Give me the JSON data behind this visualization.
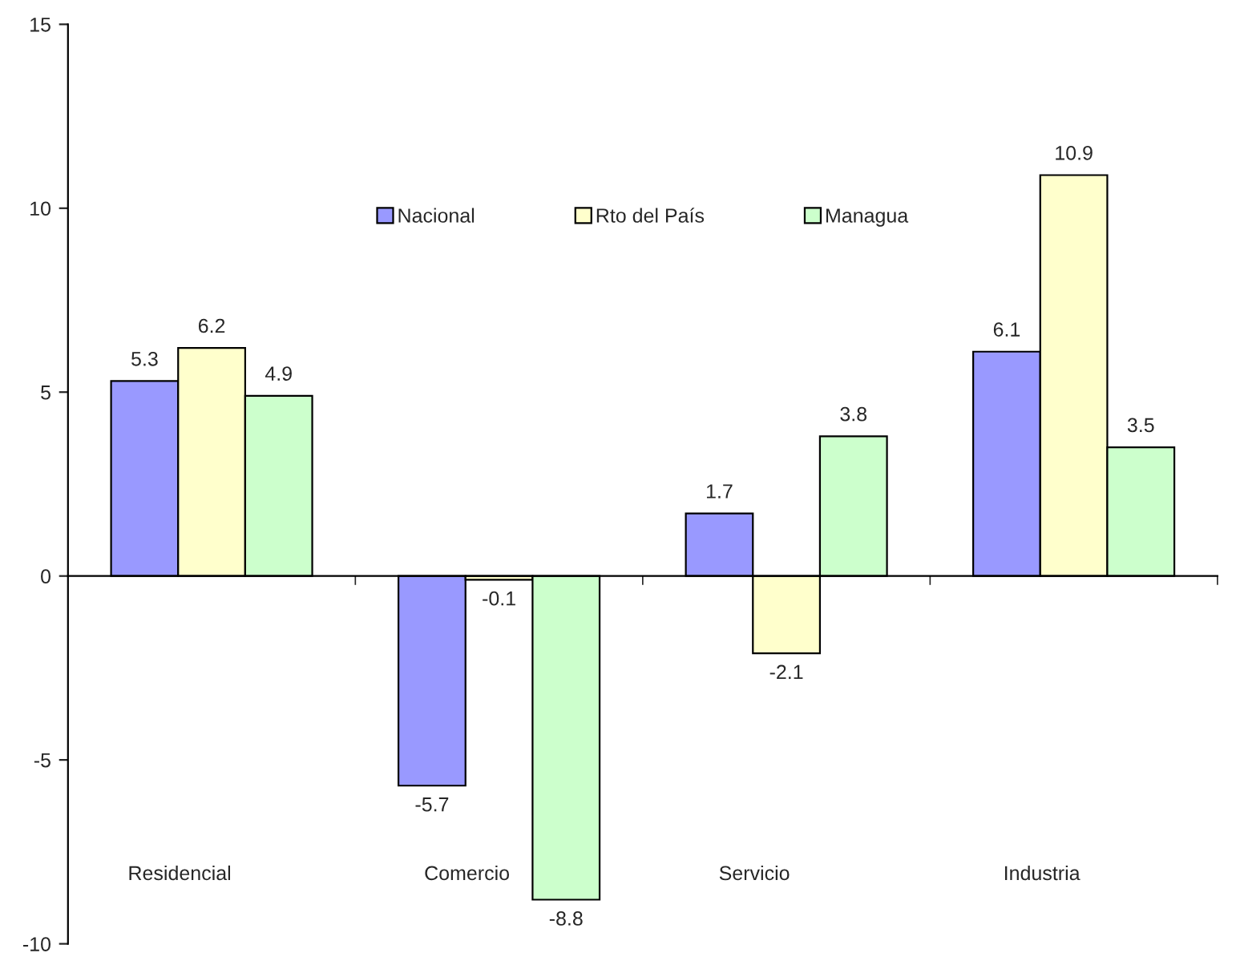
{
  "chart_data": {
    "type": "bar",
    "categories": [
      "Residencial",
      "Comercio",
      "Servicio",
      "Industria"
    ],
    "series": [
      {
        "name": "Nacional",
        "color": "#9999ff",
        "values": [
          5.3,
          -5.7,
          1.7,
          6.1
        ]
      },
      {
        "name": "Rto del País",
        "color": "#ffffcc",
        "values": [
          6.2,
          -0.1,
          -2.1,
          10.9
        ]
      },
      {
        "name": "Managua",
        "color": "#ccffcc",
        "values": [
          4.9,
          -8.8,
          3.8,
          3.5
        ]
      }
    ],
    "ylim": [
      -10,
      15
    ],
    "yticks": [
      -10,
      -5,
      0,
      5,
      10,
      15
    ],
    "legend": "top",
    "data_labels": true
  }
}
